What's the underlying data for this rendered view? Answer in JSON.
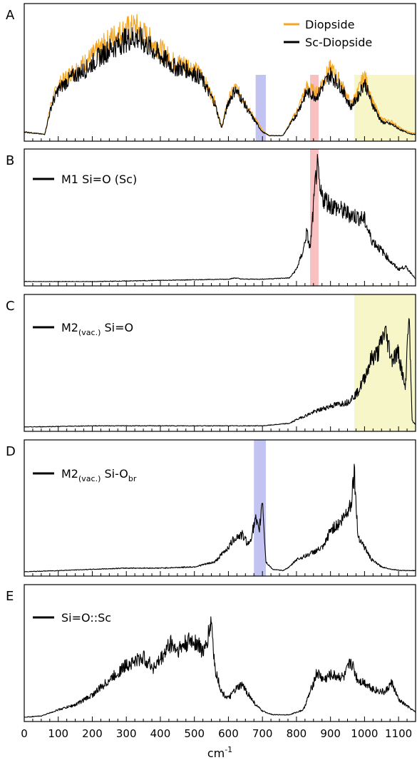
{
  "chart_data": [
    {
      "type": "line",
      "panel_label": "A",
      "xlim": [
        0,
        1150
      ],
      "legend": "top-right",
      "series": [
        {
          "name": "Diopside",
          "color": "#f5a623",
          "x": [
            0,
            60,
            80,
            100,
            140,
            180,
            220,
            260,
            300,
            330,
            360,
            400,
            440,
            480,
            520,
            560,
            580,
            600,
            620,
            640,
            660,
            680,
            700,
            720,
            760,
            800,
            830,
            860,
            880,
            900,
            930,
            960,
            980,
            1000,
            1020,
            1050,
            1080,
            1110,
            1140,
            1150
          ],
          "y": [
            0.04,
            0.02,
            0.28,
            0.42,
            0.52,
            0.6,
            0.7,
            0.8,
            0.86,
            0.88,
            0.8,
            0.7,
            0.6,
            0.58,
            0.5,
            0.28,
            0.08,
            0.3,
            0.4,
            0.32,
            0.22,
            0.14,
            0.05,
            0.01,
            0.01,
            0.2,
            0.4,
            0.36,
            0.46,
            0.55,
            0.44,
            0.26,
            0.36,
            0.5,
            0.3,
            0.14,
            0.12,
            0.06,
            0.03,
            0.03
          ]
        },
        {
          "name": "Sc-Diopside",
          "color": "#000000",
          "x": [
            0,
            60,
            80,
            100,
            140,
            180,
            220,
            260,
            300,
            330,
            360,
            400,
            440,
            480,
            520,
            560,
            580,
            600,
            620,
            640,
            660,
            680,
            700,
            720,
            760,
            800,
            830,
            860,
            880,
            900,
            930,
            960,
            980,
            1000,
            1020,
            1050,
            1080,
            1110,
            1140,
            1150
          ],
          "y": [
            0.04,
            0.02,
            0.25,
            0.38,
            0.48,
            0.54,
            0.64,
            0.72,
            0.78,
            0.8,
            0.74,
            0.65,
            0.56,
            0.54,
            0.47,
            0.27,
            0.07,
            0.28,
            0.38,
            0.3,
            0.2,
            0.12,
            0.04,
            0.01,
            0.01,
            0.18,
            0.36,
            0.32,
            0.42,
            0.5,
            0.4,
            0.24,
            0.32,
            0.44,
            0.28,
            0.12,
            0.1,
            0.05,
            0.02,
            0.02
          ]
        }
      ],
      "highlights": [
        {
          "from": 680,
          "to": 710,
          "color": "#b8b8f0"
        },
        {
          "from": 840,
          "to": 865,
          "color": "#f7b5b5"
        },
        {
          "from": 970,
          "to": 1150,
          "color": "#f5f5c0"
        }
      ]
    },
    {
      "type": "line",
      "panel_label": "B",
      "xlim": [
        0,
        1150
      ],
      "series": [
        {
          "name": "M1 Si=O (Sc)",
          "color": "#000000",
          "x": [
            0,
            200,
            400,
            600,
            620,
            640,
            660,
            700,
            780,
            800,
            820,
            830,
            840,
            850,
            860,
            870,
            900,
            950,
            1000,
            1020,
            1060,
            1080,
            1100,
            1120,
            1140,
            1150
          ],
          "y": [
            0,
            0,
            0.01,
            0.02,
            0.03,
            0.02,
            0.02,
            0.02,
            0.03,
            0.1,
            0.25,
            0.4,
            0.26,
            0.6,
            0.95,
            0.7,
            0.62,
            0.55,
            0.5,
            0.34,
            0.22,
            0.15,
            0.1,
            0.12,
            0.06,
            0.02
          ]
        }
      ],
      "highlights": [
        {
          "from": 840,
          "to": 865,
          "color": "#f7b5b5"
        }
      ]
    },
    {
      "type": "line",
      "panel_label": "C",
      "xlim": [
        0,
        1150
      ],
      "series": [
        {
          "name": "M2(vac.) Si=O",
          "color": "#000000",
          "x": [
            0,
            200,
            400,
            600,
            700,
            780,
            800,
            850,
            900,
            950,
            980,
            1000,
            1020,
            1040,
            1060,
            1080,
            1100,
            1120,
            1130,
            1140,
            1150
          ],
          "y": [
            0,
            0.01,
            0.01,
            0.01,
            0.01,
            0.03,
            0.06,
            0.12,
            0.17,
            0.2,
            0.28,
            0.4,
            0.55,
            0.6,
            0.78,
            0.55,
            0.6,
            0.3,
            0.96,
            0.05,
            0.02
          ]
        }
      ],
      "highlights": [
        {
          "from": 970,
          "to": 1150,
          "color": "#f5f5c0"
        }
      ]
    },
    {
      "type": "line",
      "panel_label": "D",
      "xlim": [
        0,
        1150
      ],
      "series": [
        {
          "name": "M2(vac.) Si-Obr",
          "color": "#000000",
          "x": [
            0,
            100,
            200,
            300,
            400,
            500,
            560,
            600,
            620,
            640,
            660,
            680,
            690,
            700,
            710,
            730,
            760,
            780,
            800,
            820,
            850,
            880,
            900,
            930,
            960,
            970,
            980,
            1000,
            1020,
            1050,
            1080,
            1110,
            1150
          ],
          "y": [
            0,
            0.01,
            0.02,
            0.03,
            0.03,
            0.04,
            0.08,
            0.2,
            0.28,
            0.3,
            0.22,
            0.42,
            0.32,
            0.6,
            0.08,
            0.02,
            0.01,
            0.04,
            0.1,
            0.12,
            0.16,
            0.2,
            0.34,
            0.4,
            0.55,
            0.82,
            0.3,
            0.2,
            0.1,
            0.04,
            0.02,
            0.01,
            0.01
          ]
        }
      ],
      "highlights": [
        {
          "from": 675,
          "to": 710,
          "color": "#b8b8f0"
        }
      ]
    },
    {
      "type": "line",
      "panel_label": "E",
      "xlim": [
        0,
        1150
      ],
      "xlabel": "cm-1",
      "xticks": [
        0,
        100,
        200,
        300,
        400,
        500,
        600,
        700,
        800,
        900,
        1000,
        1100
      ],
      "series": [
        {
          "name": "Si=O::Sc",
          "color": "#000000",
          "x": [
            0,
            50,
            100,
            150,
            200,
            250,
            300,
            350,
            380,
            400,
            430,
            450,
            480,
            500,
            530,
            550,
            560,
            580,
            600,
            620,
            640,
            660,
            680,
            700,
            730,
            780,
            820,
            840,
            860,
            880,
            900,
            940,
            960,
            980,
            1000,
            1030,
            1060,
            1080,
            1100,
            1120,
            1150
          ],
          "y": [
            0,
            0.01,
            0.06,
            0.1,
            0.18,
            0.3,
            0.42,
            0.48,
            0.4,
            0.46,
            0.6,
            0.54,
            0.6,
            0.62,
            0.52,
            0.78,
            0.4,
            0.2,
            0.15,
            0.22,
            0.26,
            0.18,
            0.1,
            0.05,
            0.02,
            0.02,
            0.06,
            0.2,
            0.36,
            0.3,
            0.34,
            0.32,
            0.45,
            0.3,
            0.28,
            0.22,
            0.2,
            0.28,
            0.14,
            0.1,
            0.04
          ]
        }
      ],
      "highlights": []
    }
  ]
}
